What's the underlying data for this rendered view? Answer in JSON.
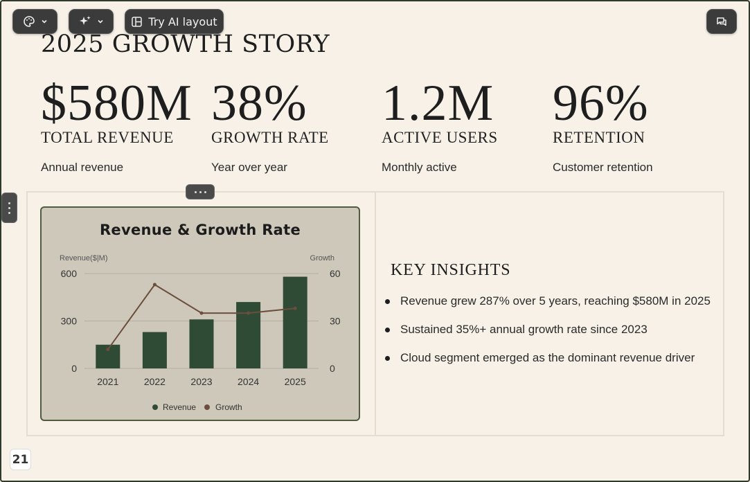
{
  "toolbar": {
    "theme_icon": "palette-icon",
    "ai_icon": "sparkle-icon",
    "layout_label": "Try AI layout",
    "layout_icon": "layout-icon",
    "comment_icon": "comment-icon"
  },
  "slide": {
    "title": "2025 GROWTH STORY",
    "stats": [
      {
        "value": "$580M",
        "label": "TOTAL REVENUE",
        "sub": "Annual revenue"
      },
      {
        "value": "38%",
        "label": "GROWTH RATE",
        "sub": "Year over year"
      },
      {
        "value": "1.2M",
        "label": "ACTIVE USERS",
        "sub": "Monthly active"
      },
      {
        "value": "96%",
        "label": "RETENTION",
        "sub": "Customer retention"
      }
    ],
    "insights_title": "KEY INSIGHTS",
    "insights": [
      "Revenue grew 287% over 5 years, reaching $580M in 2025",
      "Sustained 35%+ annual growth rate since 2023",
      "Cloud segment emerged as the dominant revenue driver"
    ]
  },
  "page_number": "21",
  "colors": {
    "background": "#f7f1e8",
    "chart_background": "#cdc8ba",
    "revenue_bar": "#2f4a35",
    "growth_line": "#6b4e3d"
  },
  "chart_data": {
    "type": "bar",
    "title": "Revenue & Growth Rate",
    "categories": [
      "2021",
      "2022",
      "2023",
      "2024",
      "2025"
    ],
    "series": [
      {
        "name": "Revenue",
        "type": "bar",
        "axis": "left",
        "values": [
          150,
          230,
          310,
          420,
          580
        ]
      },
      {
        "name": "Growth",
        "type": "line",
        "axis": "right",
        "values": [
          12,
          53,
          35,
          35,
          38
        ]
      }
    ],
    "ylabel": "Revenue($|M)",
    "ylabel_right": "Growth",
    "ylim": [
      0,
      600
    ],
    "ylim_right": [
      0,
      60
    ],
    "yticks": [
      "0",
      "300",
      "600"
    ],
    "yticks_right": [
      "0",
      "30",
      "60"
    ],
    "grid": true,
    "legend_position": "bottom"
  }
}
